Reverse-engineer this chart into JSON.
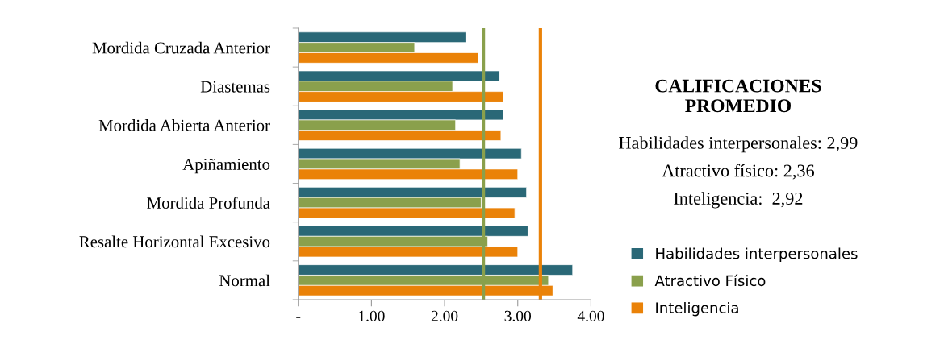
{
  "chart_data": {
    "type": "bar",
    "orientation": "horizontal",
    "title": "CALIFICACIONES\nPROMEDIO",
    "categories": [
      "Mordida Cruzada Anterior",
      "Diastemas",
      "Mordida Abierta Anterior",
      "Apiñamiento",
      "Mordida Profunda",
      "Resalte Horizontal Excesivo",
      "Normal"
    ],
    "series": [
      {
        "name": "Habilidades interpersonales",
        "color": "#2a6877",
        "values": [
          2.29,
          2.75,
          2.8,
          3.05,
          3.12,
          3.14,
          3.75
        ]
      },
      {
        "name": "Atractivo Físico",
        "color": "#8aa04c",
        "values": [
          1.59,
          2.11,
          2.15,
          2.21,
          2.5,
          2.59,
          3.42
        ]
      },
      {
        "name": "Inteligencia",
        "color": "#ea8208",
        "values": [
          2.46,
          2.8,
          2.77,
          3.0,
          2.96,
          3.0,
          3.48
        ]
      }
    ],
    "xlim": [
      0,
      4
    ],
    "xticks": [
      {
        "value": 0,
        "label": "-"
      },
      {
        "value": 1,
        "label": "1.00"
      },
      {
        "value": 2,
        "label": "2.00"
      },
      {
        "value": 3,
        "label": "3.00"
      },
      {
        "value": 4,
        "label": "4.00"
      }
    ],
    "ref_lines": [
      {
        "axis": "x",
        "value": 2.53,
        "color": "#8aa04c"
      },
      {
        "axis": "x",
        "value": 3.31,
        "color": "#ea8208"
      }
    ],
    "annotations": [
      "Habilidades interpersonales: 2,99",
      "Atractivo físico: 2,36",
      "Inteligencia:  2,92"
    ],
    "legend": "right",
    "grid": false
  }
}
